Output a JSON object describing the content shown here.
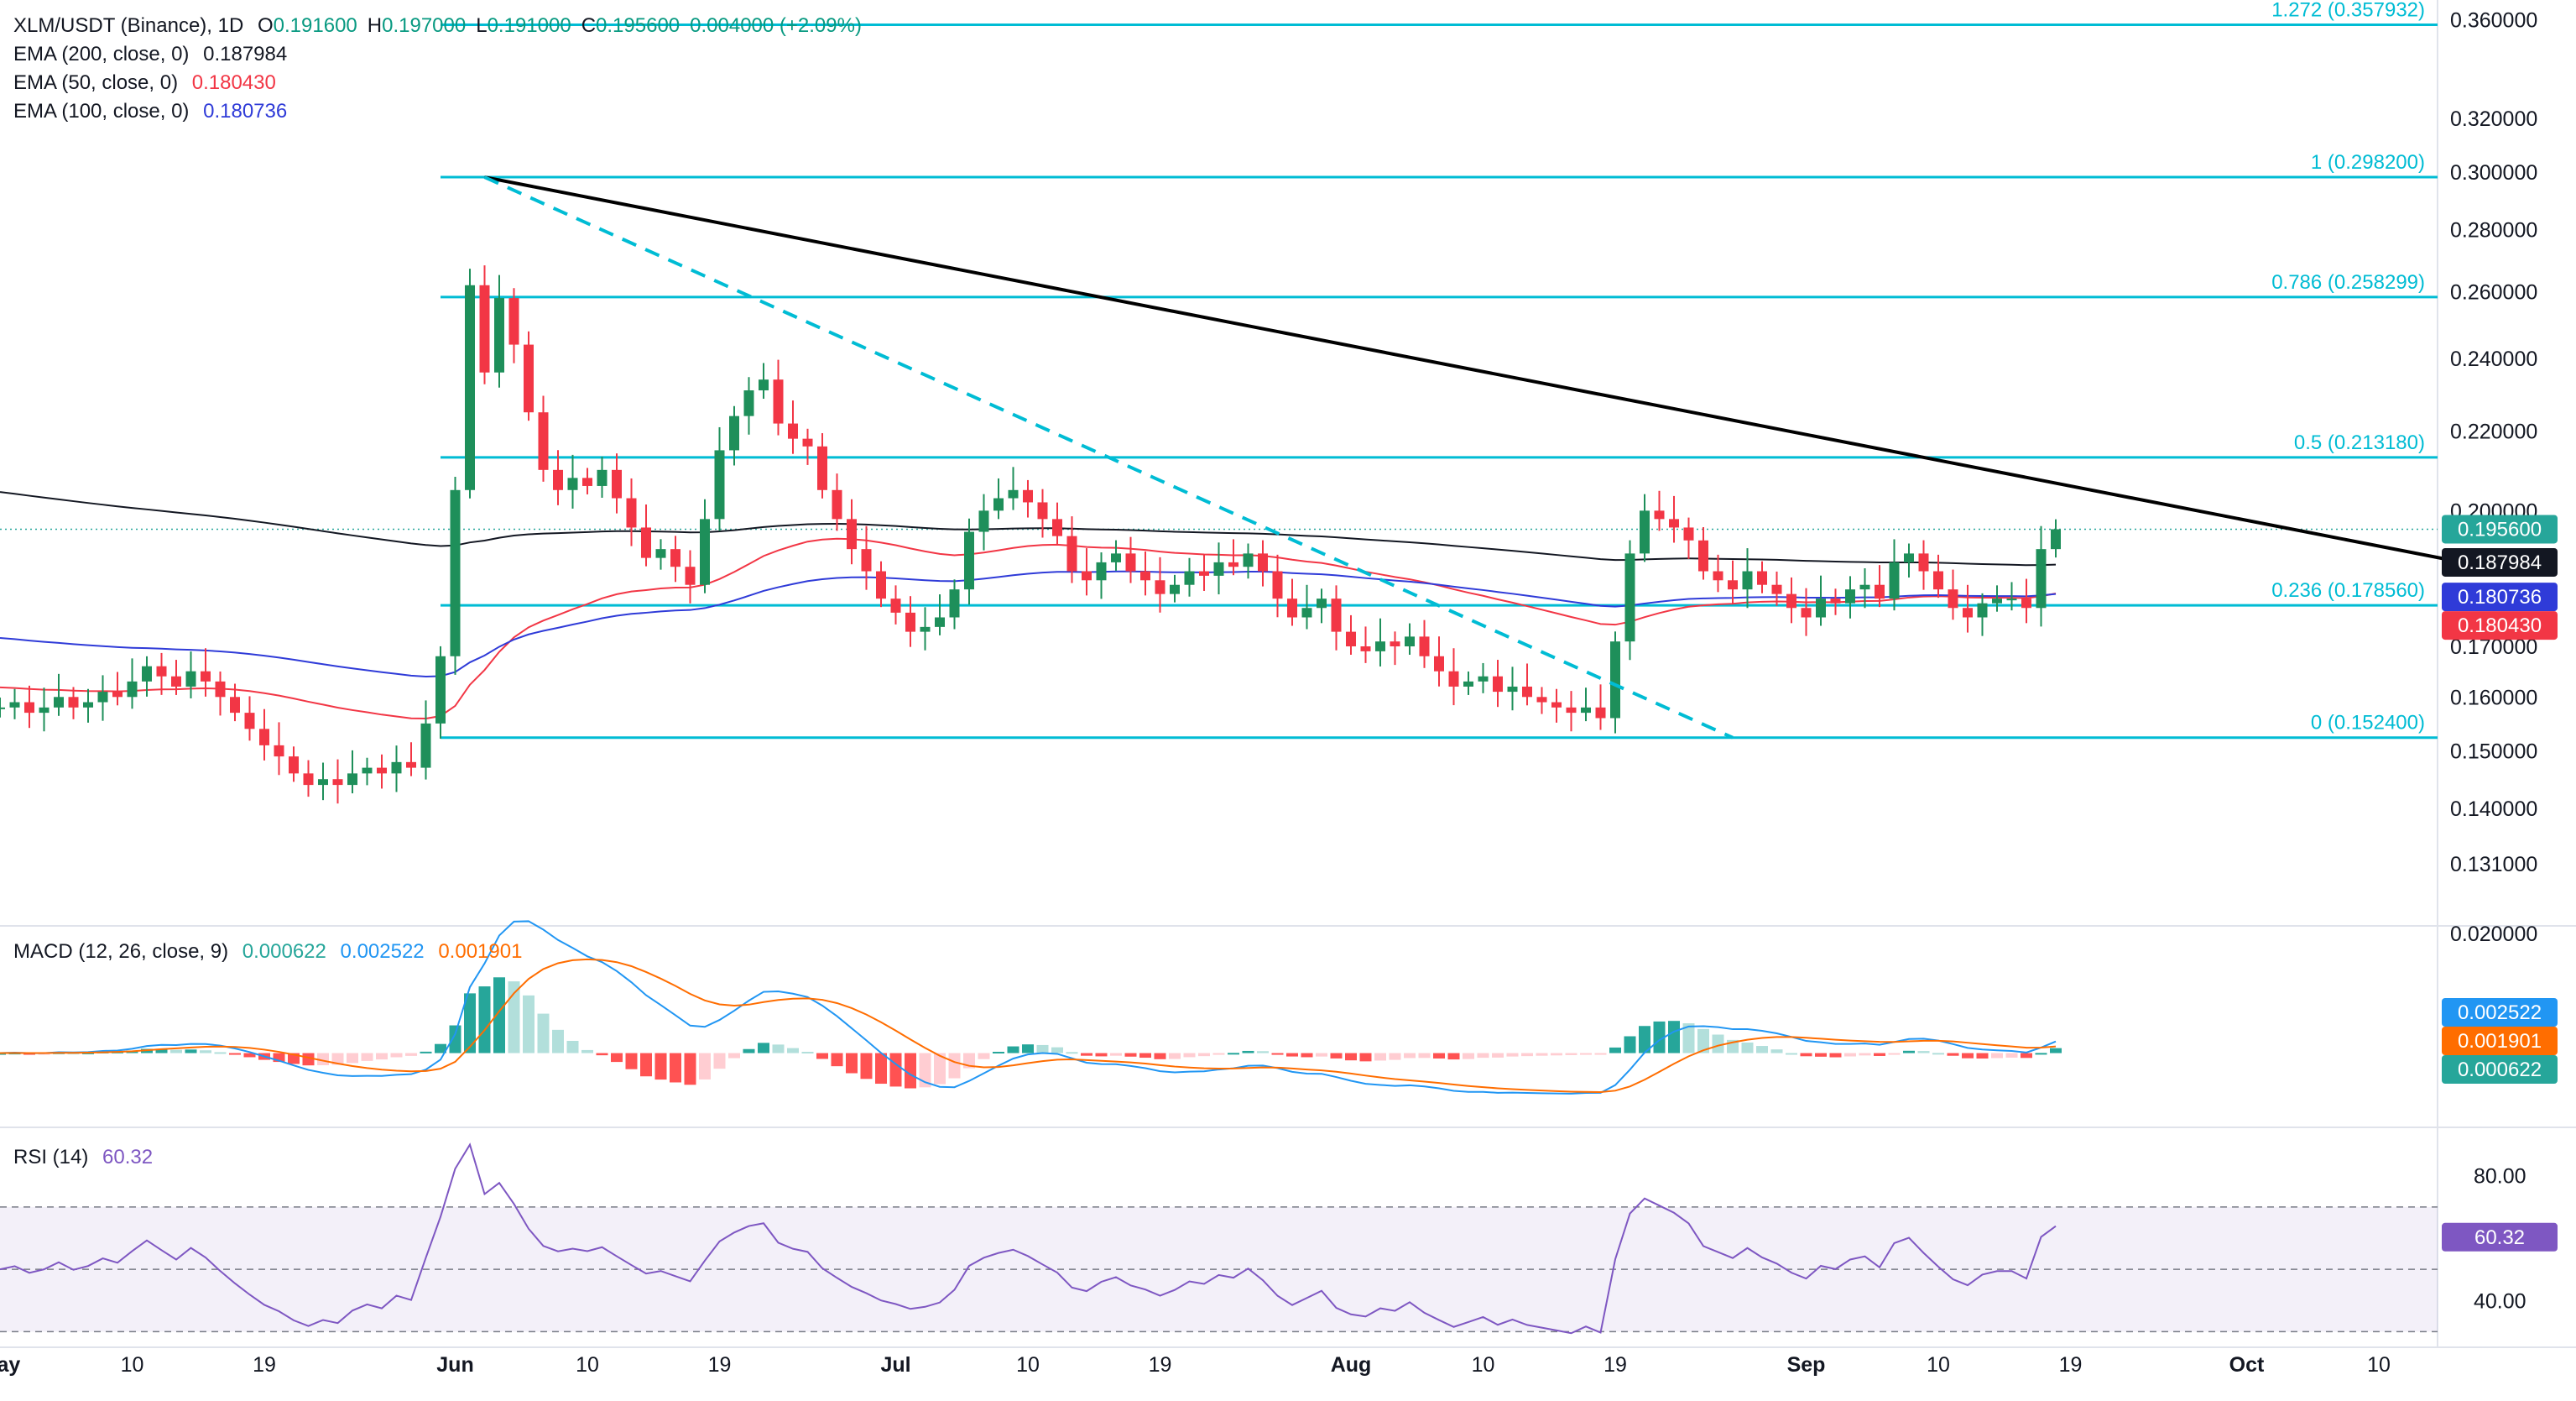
{
  "header": {
    "symbol": "XLM/USDT (Binance), 1D",
    "ohlc": {
      "open_label": "O",
      "open": "0.191600",
      "high_label": "H",
      "high": "0.197000",
      "low_label": "L",
      "low": "0.191000",
      "close_label": "C",
      "close": "0.195600",
      "change": "0.004000 (+2.09%)"
    },
    "ema200": {
      "label": "EMA (200, close, 0)",
      "value": "0.187984"
    },
    "ema50": {
      "label": "EMA (50, close, 0)",
      "value": "0.180430"
    },
    "ema100": {
      "label": "EMA (100, close, 0)",
      "value": "0.180736"
    },
    "macd": {
      "label": "MACD (12, 26, close, 9)",
      "hist": "0.000622",
      "macd": "0.002522",
      "signal": "0.001901"
    },
    "rsi": {
      "label": "RSI (14)",
      "value": "60.32"
    }
  },
  "colors": {
    "up": "#26a69a",
    "up_dark": "#1e8f5a",
    "down": "#f23645",
    "fib": "#00bcd4",
    "ema200": "#131722",
    "ema50": "#f23645",
    "ema100": "#2f3bd8",
    "macd": "#2196f3",
    "signal": "#ff6d00",
    "rsi": "#7e57c2",
    "trend": "#000000"
  },
  "chart_data": [
    {
      "type": "candlestick",
      "title": "XLM/USDT (Binance), 1D",
      "x_labels": [
        "May",
        "10",
        "19",
        "Jun",
        "10",
        "19",
        "Jul",
        "10",
        "19",
        "Aug",
        "10",
        "19",
        "Sep",
        "10",
        "19",
        "Oct",
        "10"
      ],
      "y_ticks": [
        "0.360000",
        "0.320000",
        "0.300000",
        "0.280000",
        "0.260000",
        "0.240000",
        "0.220000",
        "0.200000",
        "0.170000",
        "0.160000",
        "0.150000",
        "0.140000",
        "0.131000"
      ],
      "y_scale": "log",
      "ylim": [
        0.122,
        0.365
      ],
      "fibonacci": [
        {
          "label": "1.272 (0.357932)",
          "price": 0.357932
        },
        {
          "label": "1 (0.298200)",
          "price": 0.2982
        },
        {
          "label": "0.786 (0.258299)",
          "price": 0.258299
        },
        {
          "label": "0.5 (0.213180)",
          "price": 0.21318
        },
        {
          "label": "0.236 (0.178560)",
          "price": 0.17856
        },
        {
          "label": "0 (0.152400)",
          "price": 0.1524
        }
      ],
      "price_tags": [
        {
          "label": "0.195600",
          "price": 0.1956,
          "color": "#26a69a"
        },
        {
          "label": "0.187984",
          "price": 0.187984,
          "color": "#131722"
        },
        {
          "label": "0.180736",
          "price": 0.180736,
          "color": "#2f3bd8"
        },
        {
          "label": "0.180430",
          "price": 0.18043,
          "color": "#f23645"
        }
      ],
      "trendlines": [
        {
          "from_day": 33,
          "from_price": 0.2982,
          "to_day": 168,
          "to_price": 0.1878,
          "style": "solid"
        },
        {
          "from_day": 33,
          "from_price": 0.2982,
          "to_day": 118,
          "to_price": 0.1524,
          "style": "dashed"
        }
      ],
      "candles_note": "daily closes, May 1 to Sep 16",
      "closes": [
        0.158,
        0.159,
        0.157,
        0.158,
        0.16,
        0.158,
        0.159,
        0.161,
        0.16,
        0.163,
        0.166,
        0.164,
        0.162,
        0.165,
        0.163,
        0.16,
        0.157,
        0.154,
        0.151,
        0.149,
        0.146,
        0.144,
        0.145,
        0.144,
        0.146,
        0.147,
        0.146,
        0.148,
        0.147,
        0.155,
        0.168,
        0.205,
        0.262,
        0.236,
        0.258,
        0.244,
        0.225,
        0.21,
        0.205,
        0.208,
        0.206,
        0.21,
        0.203,
        0.196,
        0.189,
        0.191,
        0.187,
        0.183,
        0.198,
        0.215,
        0.224,
        0.231,
        0.234,
        0.222,
        0.218,
        0.216,
        0.205,
        0.198,
        0.191,
        0.186,
        0.18,
        0.177,
        0.173,
        0.174,
        0.176,
        0.182,
        0.195,
        0.2,
        0.203,
        0.205,
        0.202,
        0.198,
        0.194,
        0.186,
        0.184,
        0.188,
        0.19,
        0.186,
        0.184,
        0.181,
        0.183,
        0.186,
        0.185,
        0.188,
        0.187,
        0.19,
        0.186,
        0.18,
        0.176,
        0.178,
        0.18,
        0.173,
        0.17,
        0.169,
        0.171,
        0.17,
        0.172,
        0.168,
        0.165,
        0.162,
        0.163,
        0.164,
        0.161,
        0.162,
        0.16,
        0.159,
        0.158,
        0.157,
        0.158,
        0.156,
        0.171,
        0.19,
        0.2,
        0.198,
        0.196,
        0.193,
        0.186,
        0.184,
        0.182,
        0.186,
        0.183,
        0.181,
        0.178,
        0.176,
        0.18,
        0.179,
        0.182,
        0.183,
        0.18,
        0.188,
        0.19,
        0.186,
        0.182,
        0.178,
        0.176,
        0.179,
        0.18,
        0.18,
        0.178,
        0.191,
        0.1956
      ],
      "ema200": {
        "name": "EMA (200, close, 0)",
        "last": 0.187984
      },
      "ema50": {
        "name": "EMA (50, close, 0)",
        "last": 0.18043
      },
      "ema100": {
        "name": "EMA (100, close, 0)",
        "last": 0.180736
      }
    },
    {
      "type": "macd",
      "title": "MACD (12, 26, close, 9)",
      "y_ticks": [
        "0.020000"
      ],
      "ylim": [
        -0.012,
        0.021
      ],
      "price_tags": [
        {
          "label": "0.002522",
          "value": 0.002522,
          "color": "#2196f3"
        },
        {
          "label": "0.001901",
          "value": 0.001901,
          "color": "#ff6d00"
        },
        {
          "label": "0.000622",
          "value": 0.000622,
          "color": "#26a69a"
        }
      ]
    },
    {
      "type": "rsi",
      "title": "RSI (14)",
      "y_ticks": [
        "80.00",
        "40.00"
      ],
      "ylim": [
        25,
        95
      ],
      "bands": [
        70,
        50,
        30
      ],
      "price_tag": {
        "label": "60.32",
        "value": 60.32
      }
    }
  ]
}
